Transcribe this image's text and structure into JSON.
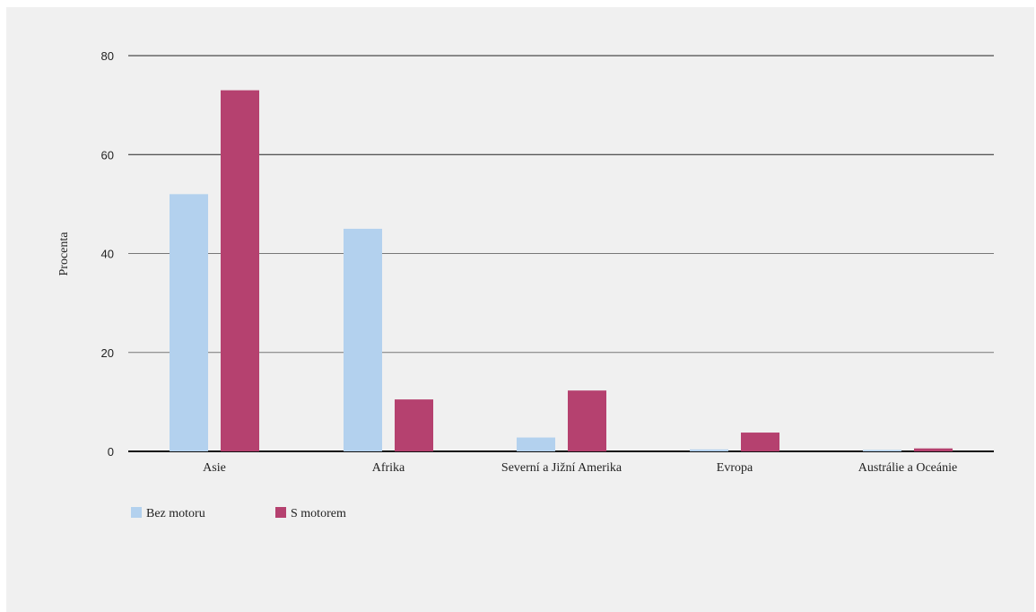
{
  "chart_data": {
    "type": "bar",
    "title": "",
    "xlabel": "",
    "ylabel": "Procenta",
    "ylim": [
      0,
      80
    ],
    "yticks": [
      0,
      20,
      40,
      60,
      80
    ],
    "grid": true,
    "legend_position": "bottom-left",
    "categories": [
      "Asie",
      "Afrika",
      "Severní a Jižní Amerika",
      "Evropa",
      "Austrálie a Oceánie"
    ],
    "series": [
      {
        "name": "Bez motoru",
        "color": "#b3d1ee",
        "values": [
          52,
          45,
          2.8,
          0.4,
          0.3
        ]
      },
      {
        "name": "S motorem",
        "color": "#b5416f",
        "values": [
          73,
          10.5,
          12.3,
          3.8,
          0.6
        ]
      }
    ]
  }
}
